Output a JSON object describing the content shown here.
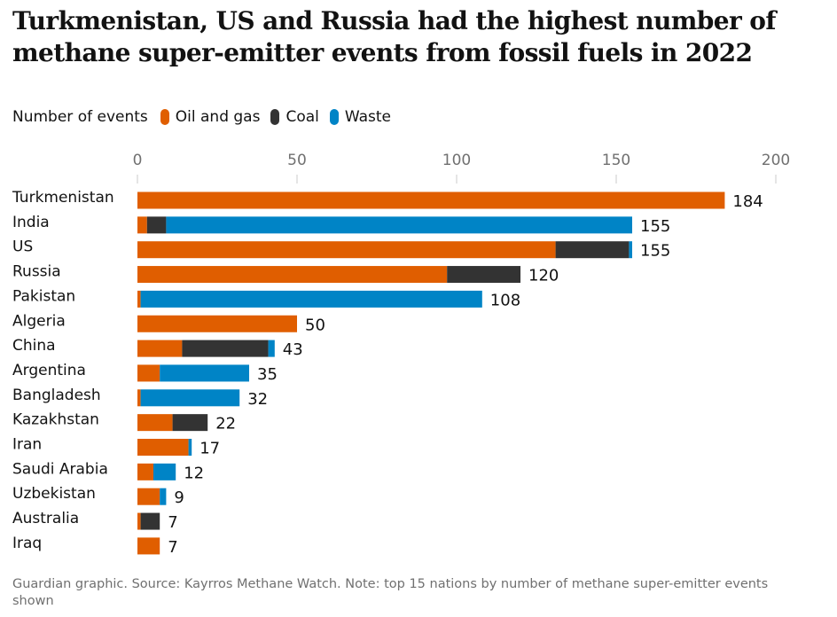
{
  "colors": {
    "oil_and_gas": "#e05e00",
    "coal": "#333333",
    "waste": "#0084c6",
    "axis_text": "#707070",
    "gridline": "#dcdcdc",
    "text": "#121212"
  },
  "header": {
    "title": "Turkmenistan, US and Russia had the highest number of methane super-emitter events from fossil fuels in 2022"
  },
  "legend": {
    "label": "Number of events",
    "items": [
      {
        "name": "Oil and gas",
        "color_key": "oil_and_gas"
      },
      {
        "name": "Coal",
        "color_key": "coal"
      },
      {
        "name": "Waste",
        "color_key": "waste"
      }
    ]
  },
  "chart_data": {
    "type": "bar",
    "orientation": "horizontal",
    "stacked": true,
    "title": "Turkmenistan, US and Russia had the highest number of methane super-emitter events from fossil fuels in 2022",
    "xlabel": "Number of events",
    "ylabel": "",
    "xlim": [
      0,
      200
    ],
    "x_ticks": [
      0,
      50,
      100,
      150,
      200
    ],
    "legend_position": "top-left",
    "categories": [
      "Turkmenistan",
      "India",
      "US",
      "Russia",
      "Pakistan",
      "Algeria",
      "China",
      "Argentina",
      "Bangladesh",
      "Kazakhstan",
      "Iran",
      "Saudi Arabia",
      "Uzbekistan",
      "Australia",
      "Iraq"
    ],
    "series": [
      {
        "name": "Oil and gas",
        "values": [
          184,
          3,
          131,
          97,
          1,
          50,
          14,
          7,
          1,
          11,
          16,
          5,
          7,
          1,
          7
        ]
      },
      {
        "name": "Coal",
        "values": [
          0,
          6,
          23,
          23,
          0,
          0,
          27,
          0,
          0,
          11,
          0,
          0,
          0,
          6,
          0
        ]
      },
      {
        "name": "Waste",
        "values": [
          0,
          146,
          1,
          0,
          107,
          0,
          2,
          28,
          31,
          0,
          1,
          7,
          2,
          0,
          0
        ]
      }
    ],
    "totals": [
      184,
      155,
      155,
      120,
      108,
      50,
      43,
      35,
      32,
      22,
      17,
      12,
      9,
      7,
      7
    ]
  },
  "footer": {
    "source": "Guardian graphic. Source: Kayrros Methane Watch. Note: top 15 nations by number of methane super-emitter events shown"
  }
}
